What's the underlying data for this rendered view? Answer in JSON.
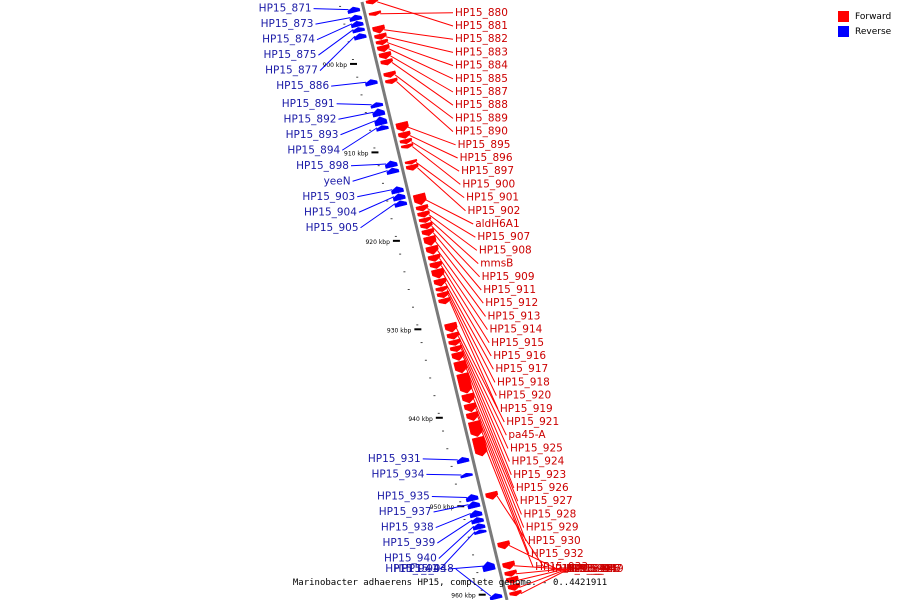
{
  "colors": {
    "forward": "#ff0000",
    "reverse": "#0000ff",
    "axis": "#7a7a7a",
    "tick": "#000000",
    "leader_fwd": "#ff0000",
    "leader_rev": "#0000ff"
  },
  "legend": [
    {
      "label": "Forward",
      "color": "#ff0000"
    },
    {
      "label": "Reverse",
      "color": "#0000ff"
    }
  ],
  "caption": "Marinobacter adhaerens HP15, complete genome. - 0..4421911",
  "ticks": [
    {
      "kbp": 900,
      "label": "900 kbp"
    },
    {
      "kbp": 910,
      "label": "910 kbp"
    },
    {
      "kbp": 920,
      "label": "920 kbp"
    },
    {
      "kbp": 930,
      "label": "930 kbp"
    },
    {
      "kbp": 940,
      "label": "940 kbp"
    },
    {
      "kbp": 950,
      "label": "950 kbp"
    },
    {
      "kbp": 960,
      "label": "960 kbp"
    }
  ],
  "genes": [
    {
      "name": "HP15_871",
      "strand": "reverse",
      "start_kbp": 893.3,
      "end_kbp": 893.9
    },
    {
      "name": "HP15_873",
      "strand": "reverse",
      "start_kbp": 894.2,
      "end_kbp": 894.8
    },
    {
      "name": "HP15_874",
      "strand": "reverse",
      "start_kbp": 894.9,
      "end_kbp": 895.5
    },
    {
      "name": "HP15_875",
      "strand": "reverse",
      "start_kbp": 895.6,
      "end_kbp": 896.1
    },
    {
      "name": "HP15_877",
      "strand": "reverse",
      "start_kbp": 896.3,
      "end_kbp": 896.9
    },
    {
      "name": "HP15_880",
      "strand": "forward",
      "start_kbp": 894.4,
      "end_kbp": 894.8
    },
    {
      "name": "HP15_881",
      "strand": "forward",
      "start_kbp": 893.0,
      "end_kbp": 893.5
    },
    {
      "name": "HP15_882",
      "strand": "forward",
      "start_kbp": 896.0,
      "end_kbp": 896.8
    },
    {
      "name": "HP15_883",
      "strand": "forward",
      "start_kbp": 896.9,
      "end_kbp": 897.5
    },
    {
      "name": "HP15_884",
      "strand": "forward",
      "start_kbp": 897.6,
      "end_kbp": 898.1
    },
    {
      "name": "HP15_885",
      "strand": "forward",
      "start_kbp": 898.2,
      "end_kbp": 898.9
    },
    {
      "name": "HP15_887",
      "strand": "forward",
      "start_kbp": 899.0,
      "end_kbp": 899.7
    },
    {
      "name": "HP15_888",
      "strand": "forward",
      "start_kbp": 899.8,
      "end_kbp": 900.4
    },
    {
      "name": "HP15_886",
      "strand": "reverse",
      "start_kbp": 901.5,
      "end_kbp": 902.1
    },
    {
      "name": "HP15_889",
      "strand": "forward",
      "start_kbp": 901.2,
      "end_kbp": 901.8
    },
    {
      "name": "HP15_890",
      "strand": "forward",
      "start_kbp": 902.0,
      "end_kbp": 902.5
    },
    {
      "name": "HP15_891",
      "strand": "reverse",
      "start_kbp": 904.1,
      "end_kbp": 904.6
    },
    {
      "name": "HP15_892",
      "strand": "reverse",
      "start_kbp": 904.8,
      "end_kbp": 905.6
    },
    {
      "name": "HP15_893",
      "strand": "reverse",
      "start_kbp": 905.7,
      "end_kbp": 906.6
    },
    {
      "name": "HP15_894",
      "strand": "reverse",
      "start_kbp": 906.7,
      "end_kbp": 907.2
    },
    {
      "name": "HP15_895",
      "strand": "forward",
      "start_kbp": 906.9,
      "end_kbp": 907.9
    },
    {
      "name": "HP15_896",
      "strand": "forward",
      "start_kbp": 908.0,
      "end_kbp": 908.7
    },
    {
      "name": "HP15_897",
      "strand": "forward",
      "start_kbp": 908.8,
      "end_kbp": 909.3
    },
    {
      "name": "HP15_900",
      "strand": "forward",
      "start_kbp": 909.4,
      "end_kbp": 909.8
    },
    {
      "name": "HP15_898",
      "strand": "reverse",
      "start_kbp": 910.7,
      "end_kbp": 911.4
    },
    {
      "name": "yeeN",
      "strand": "reverse",
      "start_kbp": 911.5,
      "end_kbp": 912.1
    },
    {
      "name": "HP15_901",
      "strand": "forward",
      "start_kbp": 911.2,
      "end_kbp": 911.6
    },
    {
      "name": "HP15_902",
      "strand": "forward",
      "start_kbp": 911.7,
      "end_kbp": 912.3
    },
    {
      "name": "HP15_903",
      "strand": "reverse",
      "start_kbp": 913.6,
      "end_kbp": 914.3
    },
    {
      "name": "HP15_904",
      "strand": "reverse",
      "start_kbp": 914.4,
      "end_kbp": 915.1
    },
    {
      "name": "HP15_905",
      "strand": "reverse",
      "start_kbp": 915.2,
      "end_kbp": 915.8
    },
    {
      "name": "aldH6A1",
      "strand": "forward",
      "start_kbp": 915.0,
      "end_kbp": 916.2
    },
    {
      "name": "HP15_907",
      "strand": "forward",
      "start_kbp": 916.3,
      "end_kbp": 916.9
    },
    {
      "name": "HP15_908",
      "strand": "forward",
      "start_kbp": 917.0,
      "end_kbp": 917.6
    },
    {
      "name": "mmsB",
      "strand": "forward",
      "start_kbp": 917.7,
      "end_kbp": 918.2
    },
    {
      "name": "HP15_909",
      "strand": "forward",
      "start_kbp": 918.3,
      "end_kbp": 918.9
    },
    {
      "name": "HP15_911",
      "strand": "forward",
      "start_kbp": 919.0,
      "end_kbp": 919.7
    },
    {
      "name": "HP15_912",
      "strand": "forward",
      "start_kbp": 919.8,
      "end_kbp": 920.8
    },
    {
      "name": "HP15_913",
      "strand": "forward",
      "start_kbp": 920.9,
      "end_kbp": 921.8
    },
    {
      "name": "HP15_914",
      "strand": "forward",
      "start_kbp": 921.9,
      "end_kbp": 922.6
    },
    {
      "name": "HP15_915",
      "strand": "forward",
      "start_kbp": 922.7,
      "end_kbp": 923.4
    },
    {
      "name": "HP15_916",
      "strand": "forward",
      "start_kbp": 923.5,
      "end_kbp": 924.5
    },
    {
      "name": "HP15_917",
      "strand": "forward",
      "start_kbp": 924.6,
      "end_kbp": 925.4
    },
    {
      "name": "HP15_918",
      "strand": "forward",
      "start_kbp": 925.5,
      "end_kbp": 926.0
    },
    {
      "name": "HP15_920",
      "strand": "forward",
      "start_kbp": 926.1,
      "end_kbp": 926.7
    },
    {
      "name": "HP15_919",
      "strand": "forward",
      "start_kbp": 926.8,
      "end_kbp": 927.4
    },
    {
      "name": "HP15_921",
      "strand": "forward",
      "start_kbp": 929.6,
      "end_kbp": 930.6
    },
    {
      "name": "pa45-A",
      "strand": "forward",
      "start_kbp": 930.7,
      "end_kbp": 931.4
    },
    {
      "name": "HP15_925",
      "strand": "forward",
      "start_kbp": 931.5,
      "end_kbp": 932.1
    },
    {
      "name": "HP15_924",
      "strand": "forward",
      "start_kbp": 932.2,
      "end_kbp": 932.8
    },
    {
      "name": "HP15_923",
      "strand": "forward",
      "start_kbp": 932.9,
      "end_kbp": 933.8
    },
    {
      "name": "HP15_926",
      "strand": "forward",
      "start_kbp": 933.9,
      "end_kbp": 935.2
    },
    {
      "name": "HP15_927",
      "strand": "forward",
      "start_kbp": 935.3,
      "end_kbp": 937.5
    },
    {
      "name": "HP15_928",
      "strand": "forward",
      "start_kbp": 937.6,
      "end_kbp": 938.6
    },
    {
      "name": "HP15_929",
      "strand": "forward",
      "start_kbp": 938.7,
      "end_kbp": 939.6
    },
    {
      "name": "HP15_930",
      "strand": "forward",
      "start_kbp": 939.7,
      "end_kbp": 940.6
    },
    {
      "name": "HP15_932",
      "strand": "forward",
      "start_kbp": 940.7,
      "end_kbp": 942.4
    },
    {
      "name": "HP15_933",
      "strand": "forward",
      "start_kbp": 942.5,
      "end_kbp": 944.6
    },
    {
      "name": "HP15_931",
      "strand": "reverse",
      "start_kbp": 944.2,
      "end_kbp": 944.8
    },
    {
      "name": "HP15_934",
      "strand": "reverse",
      "start_kbp": 946.0,
      "end_kbp": 946.4
    },
    {
      "name": "HP15_936",
      "strand": "forward",
      "start_kbp": 948.7,
      "end_kbp": 949.5
    },
    {
      "name": "HP15_935",
      "strand": "reverse",
      "start_kbp": 948.4,
      "end_kbp": 949.1
    },
    {
      "name": "HP15_937",
      "strand": "reverse",
      "start_kbp": 949.2,
      "end_kbp": 949.9
    },
    {
      "name": "HP15_938",
      "strand": "reverse",
      "start_kbp": 950.2,
      "end_kbp": 950.9
    },
    {
      "name": "HP15_939",
      "strand": "reverse",
      "start_kbp": 951.0,
      "end_kbp": 951.6
    },
    {
      "name": "HP15_940",
      "strand": "reverse",
      "start_kbp": 951.7,
      "end_kbp": 952.3
    },
    {
      "name": "HP15_941",
      "strand": "reverse",
      "start_kbp": 952.4,
      "end_kbp": 952.8
    },
    {
      "name": "HP15_942",
      "strand": "forward",
      "start_kbp": 954.3,
      "end_kbp": 955.1
    },
    {
      "name": "HP15_944",
      "strand": "forward",
      "start_kbp": 956.6,
      "end_kbp": 957.4
    },
    {
      "name": "HP15_945",
      "strand": "forward",
      "start_kbp": 957.6,
      "end_kbp": 958.2
    },
    {
      "name": "HP15_943",
      "strand": "reverse",
      "start_kbp": 956.0,
      "end_kbp": 957.0
    },
    {
      "name": "HP15_946",
      "strand": "forward",
      "start_kbp": 958.3,
      "end_kbp": 959.0
    },
    {
      "name": "HP15_947",
      "strand": "forward",
      "start_kbp": 959.1,
      "end_kbp": 959.8
    },
    {
      "name": "HP15_948",
      "strand": "reverse",
      "start_kbp": 959.6,
      "end_kbp": 960.2
    },
    {
      "name": "HP15_949",
      "strand": "forward",
      "start_kbp": 959.9,
      "end_kbp": 960.4
    }
  ]
}
